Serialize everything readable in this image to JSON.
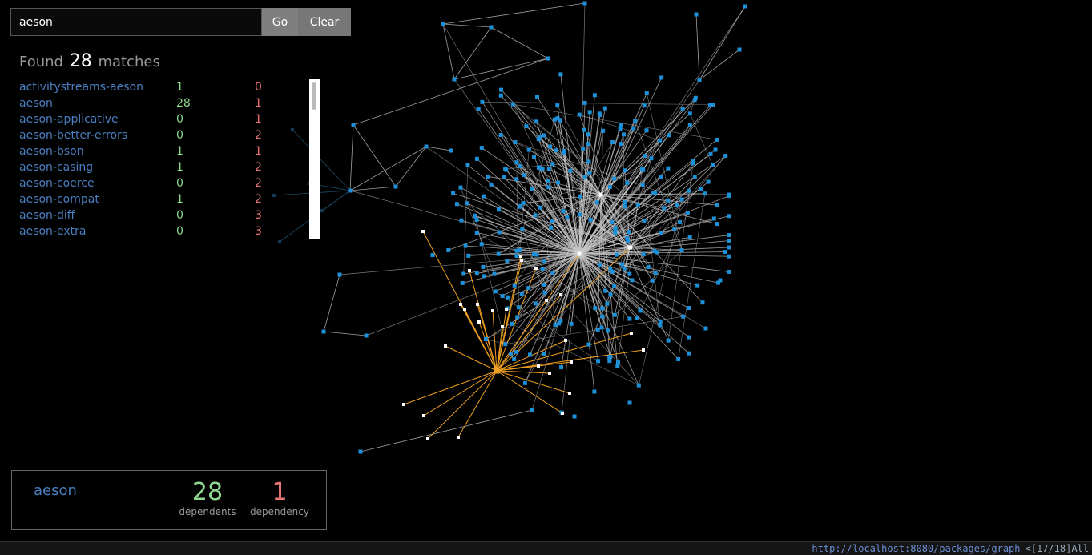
{
  "search": {
    "value": "aeson",
    "go_label": "Go",
    "clear_label": "Clear"
  },
  "found": {
    "prefix": "Found",
    "count": "28",
    "suffix": "matches"
  },
  "results": [
    {
      "name": "activitystreams-aeson",
      "dependents": "1",
      "dependencies": "0"
    },
    {
      "name": "aeson",
      "dependents": "28",
      "dependencies": "1"
    },
    {
      "name": "aeson-applicative",
      "dependents": "0",
      "dependencies": "1"
    },
    {
      "name": "aeson-better-errors",
      "dependents": "0",
      "dependencies": "2"
    },
    {
      "name": "aeson-bson",
      "dependents": "1",
      "dependencies": "1"
    },
    {
      "name": "aeson-casing",
      "dependents": "1",
      "dependencies": "2"
    },
    {
      "name": "aeson-coerce",
      "dependents": "0",
      "dependencies": "2"
    },
    {
      "name": "aeson-compat",
      "dependents": "1",
      "dependencies": "2"
    },
    {
      "name": "aeson-diff",
      "dependents": "0",
      "dependencies": "3"
    },
    {
      "name": "aeson-extra",
      "dependents": "0",
      "dependencies": "3"
    }
  ],
  "info": {
    "name": "aeson",
    "dependents_count": "28",
    "dependents_label": "dependents",
    "dependency_count": "1",
    "dependency_label": "dependency"
  },
  "statusline": {
    "url": "http://localhost:8080/packages/graph",
    "position": "<[17/18]All"
  },
  "colors": {
    "node": "#1e90d8",
    "selected_node": "#ffffff",
    "highlight_edge": "#f0a020",
    "edge": "#c8c8c8",
    "dependents_number": "#8fd88f",
    "dependency_number": "#e87878",
    "package_link": "#4a7fc0"
  },
  "icons": {
    "graph": "package-dependency-graph"
  }
}
